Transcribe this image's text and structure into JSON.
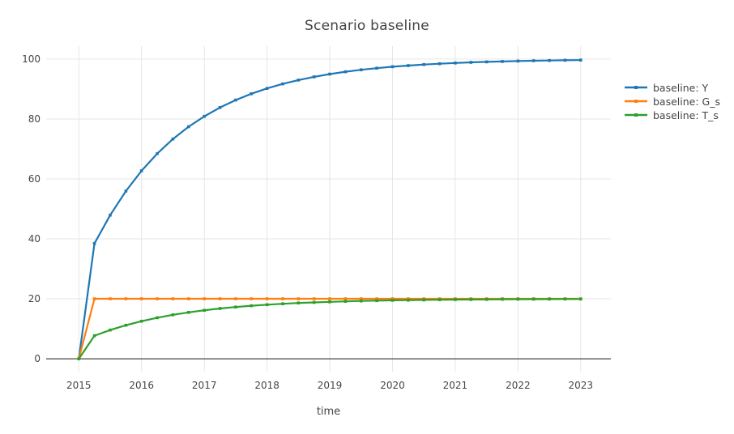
{
  "colors": {
    "background": "#ffffff",
    "grid": "#e6e6e6",
    "zeroline": "#444444",
    "text": "#444444"
  },
  "chart_data": {
    "type": "line",
    "mode": "lines+markers",
    "title": "Scenario baseline",
    "xlabel": "time",
    "ylabel": "",
    "grid": true,
    "legend_position": "right",
    "x_tick_labels": [
      "2015",
      "2016",
      "2017",
      "2018",
      "2019",
      "2020",
      "2021",
      "2022",
      "2023"
    ],
    "x_tick_values": [
      2015,
      2016,
      2017,
      2018,
      2019,
      2020,
      2021,
      2022,
      2023
    ],
    "y_tick_labels": [
      "0",
      "20",
      "40",
      "60",
      "80",
      "100"
    ],
    "y_tick_values": [
      0,
      20,
      40,
      60,
      80,
      100
    ],
    "xlim": [
      2014.48,
      2023.48
    ],
    "ylim": [
      -4.3,
      104.3
    ],
    "x": [
      2015.0,
      2015.25,
      2015.5,
      2015.75,
      2016.0,
      2016.25,
      2016.5,
      2016.75,
      2017.0,
      2017.25,
      2017.5,
      2017.75,
      2018.0,
      2018.25,
      2018.5,
      2018.75,
      2019.0,
      2019.25,
      2019.5,
      2019.75,
      2020.0,
      2020.25,
      2020.5,
      2020.75,
      2021.0,
      2021.25,
      2021.5,
      2021.75,
      2022.0,
      2022.25,
      2022.5,
      2022.75,
      2023.0
    ],
    "series": [
      {
        "name": "baseline: Y",
        "color": "#1f77b4",
        "values": [
          0,
          38.46,
          47.93,
          55.94,
          62.72,
          68.45,
          73.31,
          77.41,
          80.89,
          83.83,
          86.32,
          88.42,
          90.2,
          91.71,
          92.99,
          94.07,
          94.98,
          95.75,
          96.4,
          96.96,
          97.43,
          97.82,
          98.16,
          98.44,
          98.68,
          98.89,
          99.06,
          99.2,
          99.33,
          99.43,
          99.52,
          99.59,
          99.65
        ]
      },
      {
        "name": "baseline: G_s",
        "color": "#ff7f0e",
        "values": [
          0,
          20,
          20,
          20,
          20,
          20,
          20,
          20,
          20,
          20,
          20,
          20,
          20,
          20,
          20,
          20,
          20,
          20,
          20,
          20,
          20,
          20,
          20,
          20,
          20,
          20,
          20,
          20,
          20,
          20,
          20,
          20,
          20
        ]
      },
      {
        "name": "baseline: T_s",
        "color": "#2ca02c",
        "values": [
          0,
          7.69,
          9.59,
          11.19,
          12.54,
          13.69,
          14.66,
          15.48,
          16.18,
          16.77,
          17.26,
          17.68,
          18.04,
          18.34,
          18.6,
          18.81,
          19.0,
          19.15,
          19.28,
          19.39,
          19.49,
          19.56,
          19.63,
          19.69,
          19.74,
          19.78,
          19.81,
          19.84,
          19.87,
          19.89,
          19.9,
          19.92,
          19.93
        ]
      }
    ]
  }
}
